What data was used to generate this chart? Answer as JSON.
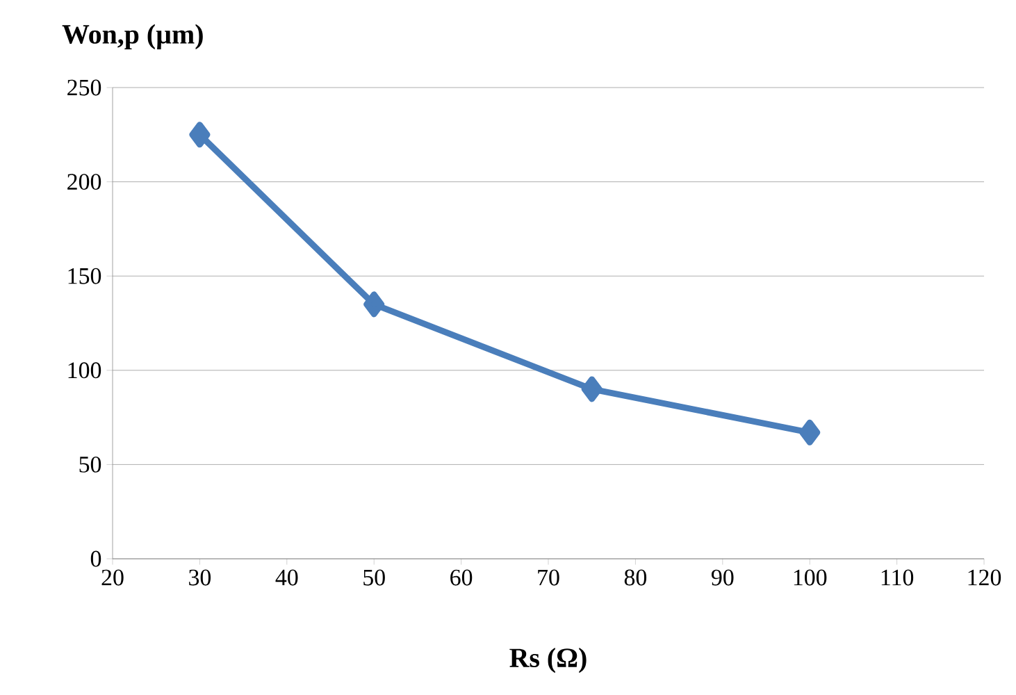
{
  "chart_data": {
    "type": "line",
    "xlabel": "Rs  (Ω)",
    "ylabel": "Won,p  (µm)",
    "x": [
      30,
      50,
      75,
      100
    ],
    "series": [
      {
        "color": "#4a7ebb",
        "values": [
          225,
          135,
          90,
          67
        ]
      }
    ],
    "xlim": [
      20,
      120
    ],
    "xticks": [
      20,
      30,
      40,
      50,
      60,
      70,
      80,
      90,
      100,
      110,
      120
    ],
    "ylim": [
      0,
      250
    ],
    "yticks": [
      0,
      50,
      100,
      150,
      200,
      250
    ],
    "grid": "y",
    "marker": "diamond",
    "line_style": "solid"
  }
}
